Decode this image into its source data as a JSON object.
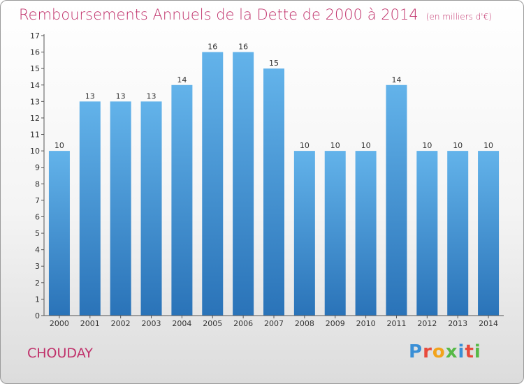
{
  "header": {
    "title": "Remboursements Annuels de la Dette de 2000 à 2014",
    "unit": "(en milliers d'€)"
  },
  "footer": {
    "commune": "CHOUDAY",
    "logo_letters": [
      "P",
      "r",
      "o",
      "x",
      "i",
      "t",
      "i"
    ],
    "logo_colors": [
      "#3a8fd6",
      "#e84a3c",
      "#f2a31b",
      "#57b947",
      "#3a8fd6",
      "#e84a3c",
      "#57b947"
    ]
  },
  "colors": {
    "title": "#c0306a",
    "bar_top": "#63b3ea",
    "bar_bottom": "#2a73b8",
    "axis": "#555555",
    "grid": "#cccccc"
  },
  "chart_data": {
    "type": "bar",
    "title": "Remboursements Annuels de la Dette de 2000 à 2014",
    "xlabel": "",
    "ylabel": "",
    "categories": [
      "2000",
      "2001",
      "2002",
      "2003",
      "2004",
      "2005",
      "2006",
      "2007",
      "2008",
      "2009",
      "2010",
      "2011",
      "2012",
      "2013",
      "2014"
    ],
    "values": [
      10,
      13,
      13,
      13,
      14,
      16,
      16,
      15,
      10,
      10,
      10,
      14,
      10,
      10,
      10
    ],
    "ylim": [
      0,
      17
    ],
    "yticks": [
      0,
      1,
      2,
      3,
      4,
      5,
      6,
      7,
      8,
      9,
      10,
      11,
      12,
      13,
      14,
      15,
      16,
      17
    ],
    "grid": false,
    "data_labels": true
  }
}
